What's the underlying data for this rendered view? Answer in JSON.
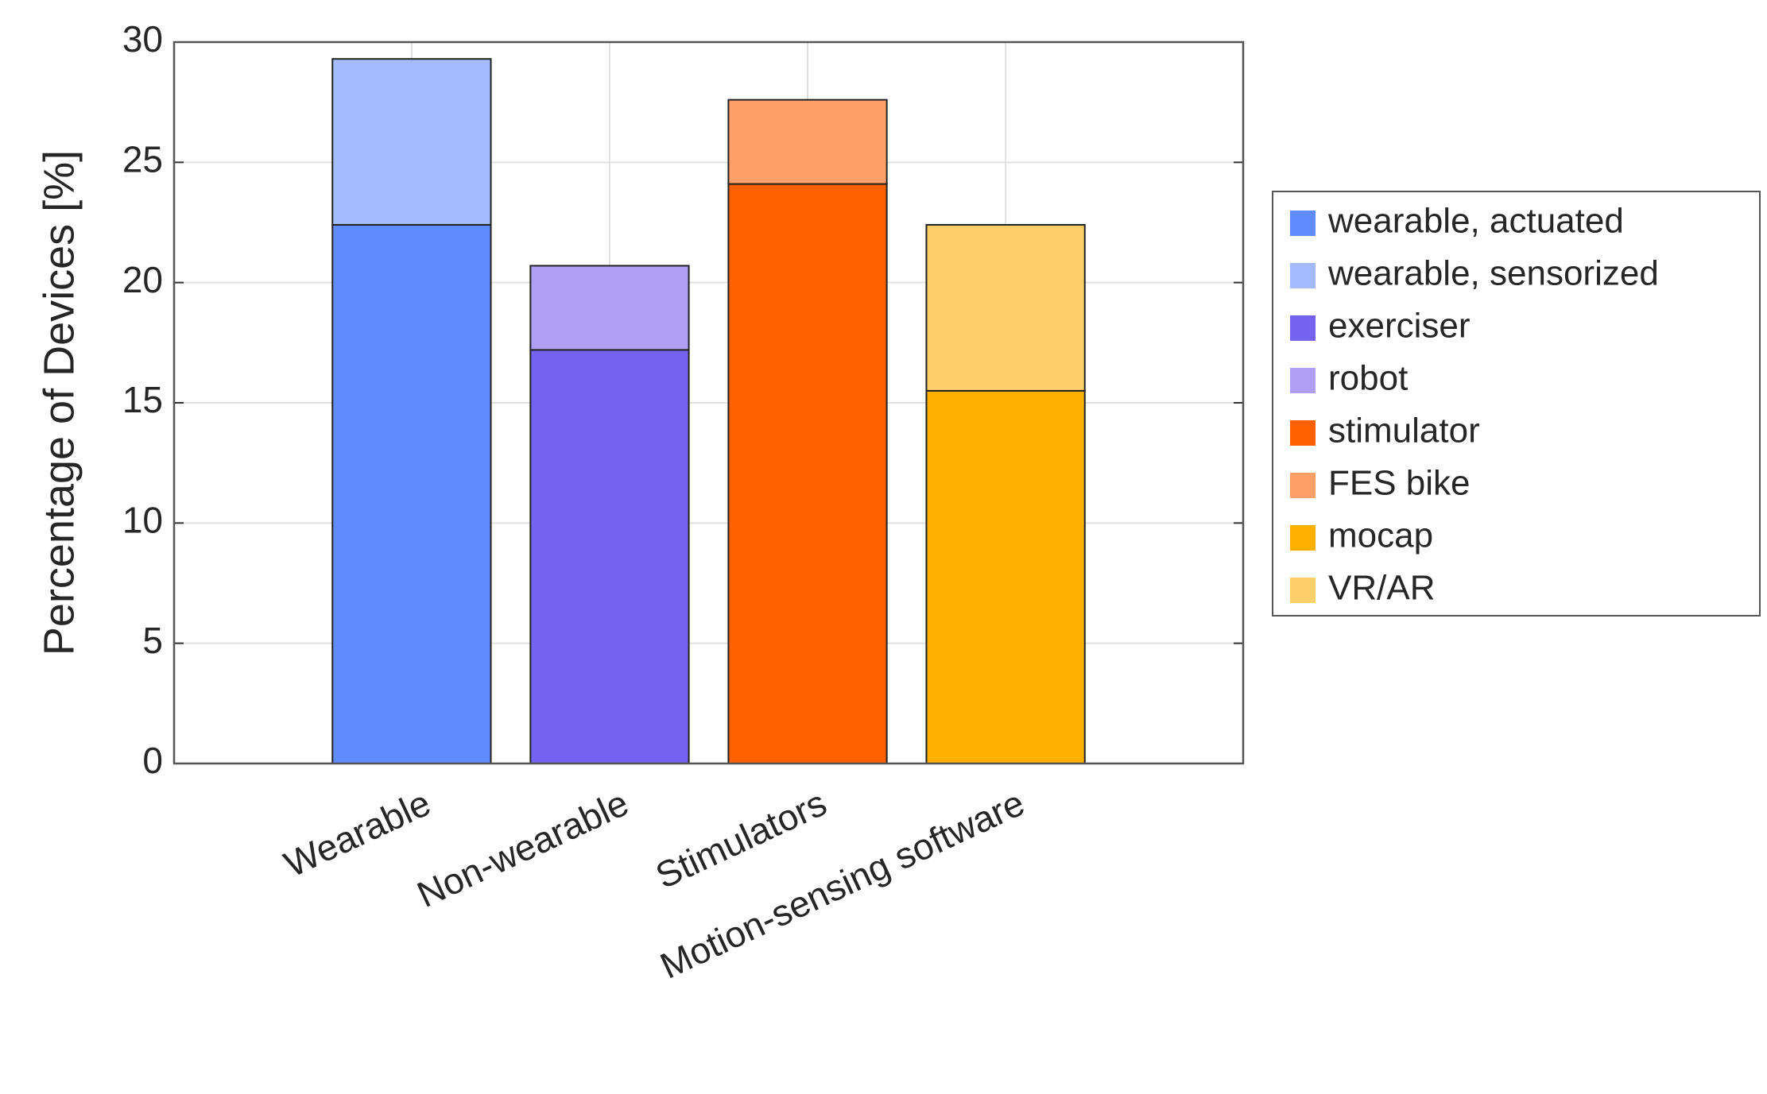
{
  "chart_data": {
    "type": "bar",
    "stacked": true,
    "ylabel": "Percentage of Devices [%]",
    "categories": [
      "Wearable",
      "Non-wearable",
      "Stimulators",
      "Motion-sensing software"
    ],
    "series": [
      {
        "name": "wearable, actuated",
        "color": "#608cff",
        "values": [
          22.4,
          null,
          null,
          null
        ]
      },
      {
        "name": "wearable, sensorized",
        "color": "#a4bbff",
        "values": [
          6.9,
          null,
          null,
          null
        ]
      },
      {
        "name": "exerciser",
        "color": "#7662f0",
        "values": [
          null,
          17.2,
          null,
          null
        ]
      },
      {
        "name": "robot",
        "color": "#ae9ff5",
        "values": [
          null,
          3.5,
          null,
          null
        ]
      },
      {
        "name": "stimulator",
        "color": "#ff6000",
        "values": [
          null,
          null,
          24.1,
          null
        ]
      },
      {
        "name": "FES bike",
        "color": "#ffa06a",
        "values": [
          null,
          null,
          3.5,
          null
        ]
      },
      {
        "name": "mocap",
        "color": "#ffb000",
        "values": [
          null,
          null,
          null,
          15.5
        ]
      },
      {
        "name": "VR/AR",
        "color": "#ffd06a",
        "values": [
          null,
          null,
          null,
          6.9
        ]
      }
    ],
    "ylim": [
      0,
      30
    ],
    "yticks": [
      0,
      5,
      10,
      15,
      20,
      25,
      30
    ],
    "grid": true,
    "legend": "right"
  }
}
